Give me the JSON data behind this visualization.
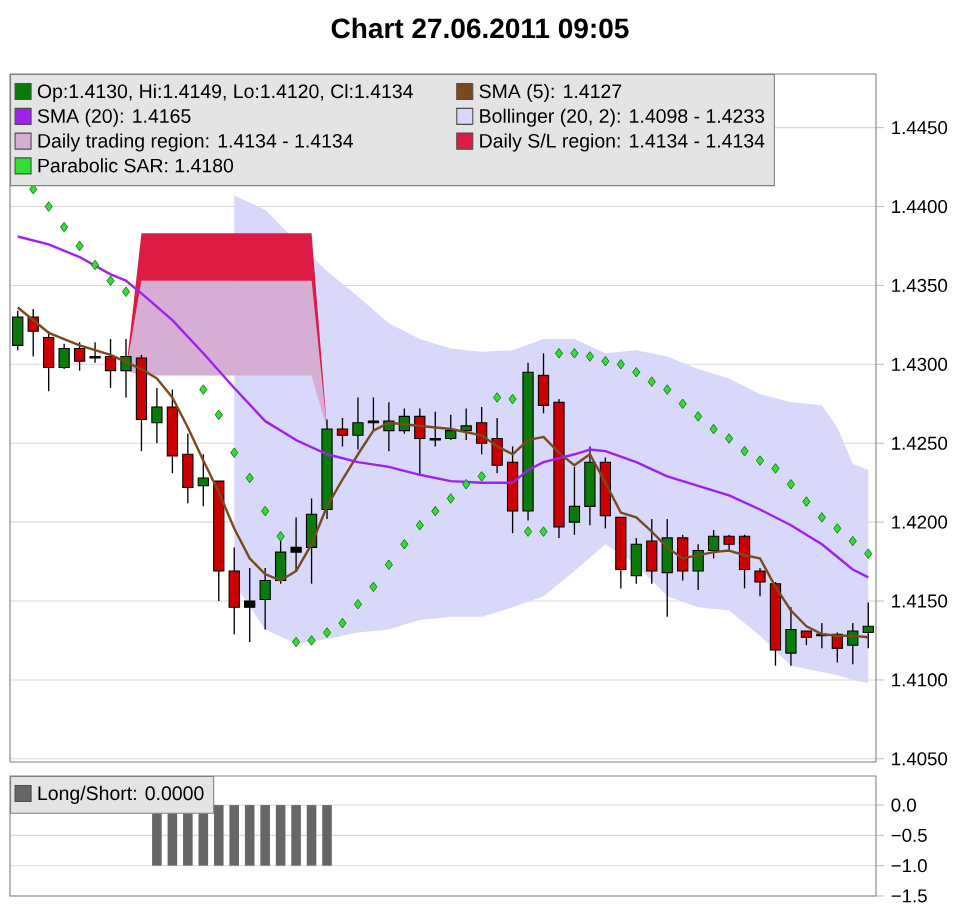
{
  "chart_data": [
    {
      "type": "candlestick",
      "title": "Chart 27.06.2011 09:05",
      "categories": [
        null,
        null,
        null,
        null,
        null,
        null,
        null,
        null,
        null,
        null,
        null,
        null,
        null,
        null,
        null,
        null,
        null,
        null,
        null,
        null,
        null,
        null,
        null,
        null,
        null,
        null,
        null,
        null,
        null,
        null,
        null,
        null,
        null,
        null,
        null,
        null,
        null,
        null,
        null,
        null,
        null,
        null,
        null,
        null,
        null,
        null,
        null,
        null,
        null,
        null,
        null,
        null,
        null,
        null,
        null,
        null
      ],
      "series": [
        {
          "type": "candlestick",
          "name": "Op:1.4130, Hi:1.4149, Lo:1.4120, Cl:1.4134",
          "color": "#0a7a0a",
          "ohlc": [
            [
              1.4312,
              1.4334,
              1.4309,
              1.433
            ],
            [
              1.433,
              1.4335,
              1.4305,
              1.4321
            ],
            [
              1.4317,
              1.4321,
              1.4283,
              1.4298
            ],
            [
              1.4298,
              1.4313,
              1.4297,
              1.431
            ],
            [
              1.431,
              1.4314,
              1.4296,
              1.4302
            ],
            [
              1.4305,
              1.4314,
              1.4301,
              1.4304
            ],
            [
              1.4305,
              1.4316,
              1.4285,
              1.4296
            ],
            [
              1.4296,
              1.4316,
              1.4279,
              1.4305
            ],
            [
              1.4304,
              1.4306,
              1.4245,
              1.4265
            ],
            [
              1.4263,
              1.4285,
              1.425,
              1.4273
            ],
            [
              1.4273,
              1.4284,
              1.4231,
              1.4242
            ],
            [
              1.4243,
              1.4256,
              1.4212,
              1.4222
            ],
            [
              1.4223,
              1.4243,
              1.421,
              1.4228
            ],
            [
              1.4226,
              1.4226,
              1.415,
              1.4169
            ],
            [
              1.4169,
              1.4184,
              1.4129,
              1.4146
            ],
            [
              1.4146,
              1.4171,
              1.4124,
              1.415
            ],
            [
              1.4151,
              1.4171,
              1.4132,
              1.4163
            ],
            [
              1.4163,
              1.4188,
              1.4161,
              1.4181
            ],
            [
              1.4181,
              1.4203,
              1.4169,
              1.4184
            ],
            [
              1.4184,
              1.4215,
              1.4161,
              1.4205
            ],
            [
              1.4208,
              1.4265,
              1.4202,
              1.4259
            ],
            [
              1.4259,
              1.4266,
              1.4248,
              1.4255
            ],
            [
              1.4255,
              1.4279,
              1.4246,
              1.4263
            ],
            [
              1.4263,
              1.4279,
              1.4258,
              1.4264
            ],
            [
              1.4258,
              1.4276,
              1.4245,
              1.4264
            ],
            [
              1.4258,
              1.4272,
              1.4256,
              1.4267
            ],
            [
              1.4267,
              1.4272,
              1.423,
              1.4253
            ],
            [
              1.4253,
              1.427,
              1.4248,
              1.4252
            ],
            [
              1.4253,
              1.4268,
              1.4252,
              1.4258
            ],
            [
              1.4258,
              1.4272,
              1.4252,
              1.4261
            ],
            [
              1.4263,
              1.4273,
              1.4243,
              1.425
            ],
            [
              1.4253,
              1.4266,
              1.4231,
              1.4236
            ],
            [
              1.4238,
              1.4248,
              1.4193,
              1.4207
            ],
            [
              1.4207,
              1.4301,
              1.4201,
              1.4295
            ],
            [
              1.4293,
              1.4307,
              1.4269,
              1.4274
            ],
            [
              1.4276,
              1.4278,
              1.419,
              1.4197
            ],
            [
              1.42,
              1.4235,
              1.4192,
              1.421
            ],
            [
              1.421,
              1.4248,
              1.4198,
              1.4238
            ],
            [
              1.4238,
              1.4241,
              1.4196,
              1.4204
            ],
            [
              1.4203,
              1.4203,
              1.4158,
              1.417
            ],
            [
              1.4166,
              1.419,
              1.4161,
              1.4186
            ],
            [
              1.4188,
              1.4202,
              1.4161,
              1.4169
            ],
            [
              1.4168,
              1.4202,
              1.414,
              1.419
            ],
            [
              1.419,
              1.4192,
              1.4163,
              1.4169
            ],
            [
              1.4169,
              1.4186,
              1.4157,
              1.4182
            ],
            [
              1.4182,
              1.4195,
              1.4177,
              1.4191
            ],
            [
              1.4191,
              1.4192,
              1.4182,
              1.4186
            ],
            [
              1.4191,
              1.4192,
              1.4158,
              1.417
            ],
            [
              1.4169,
              1.4171,
              1.4153,
              1.4162
            ],
            [
              1.4161,
              1.4162,
              1.4109,
              1.4119
            ],
            [
              1.4117,
              1.4146,
              1.4109,
              1.4132
            ],
            [
              1.4131,
              1.4131,
              1.4122,
              1.4127
            ],
            [
              1.4129,
              1.4136,
              1.412,
              1.4128
            ],
            [
              1.4129,
              1.413,
              1.4111,
              1.412
            ],
            [
              1.4122,
              1.4136,
              1.411,
              1.4131
            ],
            [
              1.413,
              1.4149,
              1.412,
              1.4134
            ]
          ],
          "colors": [
            "#0a7a0a",
            "#cc0000",
            "#cc0000",
            "#0a7a0a",
            "#cc0000",
            "#000000",
            "#cc0000",
            "#0a7a0a",
            "#cc0000",
            "#0a7a0a",
            "#cc0000",
            "#cc0000",
            "#0a7a0a",
            "#cc0000",
            "#cc0000",
            "#000000",
            "#0a7a0a",
            "#0a7a0a",
            "#000000",
            "#0a7a0a",
            "#0a7a0a",
            "#cc0000",
            "#0a7a0a",
            "#000000",
            "#0a7a0a",
            "#0a7a0a",
            "#cc0000",
            "#000000",
            "#0a7a0a",
            "#0a7a0a",
            "#cc0000",
            "#cc0000",
            "#cc0000",
            "#0a7a0a",
            "#cc0000",
            "#cc0000",
            "#0a7a0a",
            "#0a7a0a",
            "#cc0000",
            "#cc0000",
            "#0a7a0a",
            "#cc0000",
            "#0a7a0a",
            "#cc0000",
            "#0a7a0a",
            "#0a7a0a",
            "#cc0000",
            "#cc0000",
            "#cc0000",
            "#cc0000",
            "#0a7a0a",
            "#cc0000",
            "#000000",
            "#cc0000",
            "#0a7a0a",
            "#0a7a0a"
          ]
        },
        {
          "type": "line",
          "name": "SMA (5): 1.4127",
          "color": "#7a4a1e",
          "values": [
            1.4336,
            null,
            1.432,
            null,
            1.4312,
            null,
            1.4306,
            null,
            1.4297,
            1.4291,
            1.4279,
            1.426,
            1.4239,
            1.4219,
            1.4196,
            1.4177,
            1.4167,
            1.4163,
            1.4169,
            1.4186,
            1.421,
            1.4227,
            1.4243,
            1.4258,
            1.4263,
            null,
            1.4261,
            null,
            1.4259,
            null,
            1.4255,
            1.4248,
            1.4243,
            1.4252,
            1.4254,
            1.4244,
            1.4236,
            1.4243,
            1.4225,
            1.4206,
            1.4203,
            1.4194,
            1.4184,
            1.4177,
            1.4179,
            1.4181,
            1.4182,
            1.4179,
            1.4177,
            1.4159,
            1.4144,
            1.4134,
            1.4129,
            1.4128,
            1.4128,
            1.4127
          ]
        },
        {
          "type": "line",
          "name": "SMA (20): 1.4165",
          "color": "#a020f0",
          "values": [
            1.4381,
            null,
            1.4376,
            null,
            1.4368,
            null,
            1.4357,
            1.4353,
            1.4345,
            null,
            1.4328,
            null,
            1.4307,
            null,
            1.4285,
            null,
            1.4264,
            null,
            1.4252,
            null,
            1.4243,
            null,
            1.4238,
            null,
            1.4235,
            null,
            1.423,
            null,
            1.4226,
            null,
            1.4225,
            null,
            1.4225,
            1.4233,
            1.4238,
            null,
            1.4243,
            1.4246,
            1.4245,
            null,
            1.4238,
            null,
            1.4229,
            null,
            1.4223,
            null,
            1.4217,
            null,
            1.4208,
            null,
            1.4198,
            null,
            1.4186,
            null,
            1.417,
            1.4165
          ]
        },
        {
          "type": "line",
          "name": "Bollinger (20, 2): 1.4098 - 1.4233",
          "color": "#d8d8fb",
          "values": [
            null,
            null,
            null,
            null,
            null,
            null,
            null,
            null,
            null,
            null,
            null,
            null,
            null,
            null,
            null,
            null,
            null,
            null,
            null,
            null,
            null,
            null,
            null,
            null,
            null,
            null,
            null,
            null,
            null,
            null,
            null,
            null,
            null,
            null,
            null,
            null,
            null,
            null,
            null,
            null,
            null,
            null,
            null,
            null,
            null,
            null,
            null,
            null,
            null,
            null,
            null,
            null,
            null,
            null,
            null,
            null
          ],
          "lower": [
            null,
            null,
            null,
            null,
            null,
            null,
            null,
            null,
            null,
            null,
            null,
            null,
            null,
            null,
            1.4161,
            null,
            1.4132,
            null,
            1.4123,
            null,
            1.4126,
            null,
            1.413,
            null,
            1.4132,
            null,
            1.4138,
            null,
            1.414,
            null,
            1.414,
            null,
            1.4146,
            null,
            1.4153,
            null,
            1.4169,
            null,
            1.4186,
            null,
            1.4173,
            null,
            1.4153,
            null,
            1.4146,
            null,
            1.4144,
            null,
            1.4128,
            null,
            1.4109,
            null,
            1.4105,
            1.4103,
            1.41,
            1.4098
          ],
          "upper": [
            null,
            null,
            null,
            null,
            null,
            null,
            null,
            null,
            null,
            null,
            null,
            null,
            null,
            null,
            1.4407,
            null,
            1.4398,
            null,
            1.4378,
            null,
            1.4359,
            null,
            1.4343,
            null,
            1.4326,
            null,
            1.4316,
            null,
            1.431,
            null,
            1.4308,
            null,
            1.4309,
            null,
            1.4316,
            null,
            1.4316,
            null,
            1.4307,
            null,
            1.4309,
            null,
            1.4305,
            null,
            1.4297,
            null,
            1.4291,
            null,
            1.4281,
            null,
            1.4276,
            null,
            1.4274,
            1.426,
            1.4237,
            1.4233
          ]
        },
        {
          "type": "line",
          "name": "Daily trading region: 1.4134 - 1.4134",
          "color": "#d6aed3",
          "values": [
            null,
            null,
            null,
            null,
            null,
            null,
            null,
            null,
            null,
            null,
            null,
            null,
            null,
            null,
            null,
            null,
            null,
            null,
            null,
            null,
            null,
            null,
            null,
            null,
            null,
            null,
            null,
            null,
            null,
            null,
            null,
            null,
            null,
            null,
            null,
            null,
            null,
            null,
            null,
            null,
            null,
            null,
            null,
            null,
            null,
            null,
            null,
            null,
            null,
            null,
            null,
            null,
            null,
            null,
            null,
            null
          ],
          "lower": [
            null,
            null,
            null,
            null,
            null,
            null,
            null,
            1.4296,
            1.4293,
            null,
            null,
            null,
            null,
            null,
            null,
            null,
            null,
            null,
            null,
            1.4293,
            1.4259,
            null,
            null,
            null,
            null,
            null,
            null,
            null,
            null,
            null,
            null,
            null,
            null,
            null,
            null,
            null,
            null,
            null,
            null,
            null,
            null,
            null,
            null,
            null,
            null,
            null,
            null,
            null,
            null,
            null,
            null,
            null,
            null,
            null,
            null,
            null
          ],
          "upper": [
            null,
            null,
            null,
            null,
            null,
            null,
            null,
            1.4296,
            1.4353,
            null,
            null,
            null,
            null,
            null,
            null,
            null,
            null,
            null,
            null,
            1.4353,
            1.4259,
            null,
            null,
            null,
            null,
            null,
            null,
            null,
            null,
            null,
            null,
            null,
            null,
            null,
            null,
            null,
            null,
            null,
            null,
            null,
            null,
            null,
            null,
            null,
            null,
            null,
            null,
            null,
            null,
            null,
            null,
            null,
            null,
            null,
            null,
            null
          ]
        },
        {
          "type": "line",
          "name": "Daily S/L region: 1.4134 - 1.4134",
          "color": "#dc1c44",
          "values": [
            null,
            null,
            null,
            null,
            null,
            null,
            null,
            null,
            null,
            null,
            null,
            null,
            null,
            null,
            null,
            null,
            null,
            null,
            null,
            null,
            null,
            null,
            null,
            null,
            null,
            null,
            null,
            null,
            null,
            null,
            null,
            null,
            null,
            null,
            null,
            null,
            null,
            null,
            null,
            null,
            null,
            null,
            null,
            null,
            null,
            null,
            null,
            null,
            null,
            null,
            null,
            null,
            null,
            null,
            null,
            null
          ],
          "lower": [
            null,
            null,
            null,
            null,
            null,
            null,
            null,
            1.4296,
            1.4353,
            null,
            null,
            null,
            null,
            null,
            null,
            null,
            null,
            null,
            null,
            1.4353,
            1.4259,
            null,
            null,
            null,
            null,
            null,
            null,
            null,
            null,
            null,
            null,
            null,
            null,
            null,
            null,
            null,
            null,
            null,
            null,
            null,
            null,
            null,
            null,
            null,
            null,
            null,
            null,
            null,
            null,
            null,
            null,
            null,
            null,
            null,
            null,
            null
          ],
          "upper": [
            null,
            null,
            null,
            null,
            null,
            null,
            null,
            1.4296,
            1.4383,
            null,
            null,
            null,
            null,
            null,
            null,
            null,
            null,
            null,
            null,
            1.4383,
            1.4259,
            null,
            null,
            null,
            null,
            null,
            null,
            null,
            null,
            null,
            null,
            null,
            null,
            null,
            null,
            null,
            null,
            null,
            null,
            null,
            null,
            null,
            null,
            null,
            null,
            null,
            null,
            null,
            null,
            null,
            null,
            null,
            null,
            null,
            null,
            null
          ]
        },
        {
          "type": "scatter",
          "name": "Parabolic SAR: 1.4180",
          "color": "#33dd33",
          "marker": "diamond",
          "values": [
            null,
            1.4411,
            1.44,
            1.4387,
            1.4375,
            1.4363,
            1.4353,
            1.4346,
            null,
            null,
            null,
            null,
            1.4284,
            1.4268,
            1.4244,
            1.4228,
            1.4207,
            1.4191,
            1.4124,
            1.4125,
            1.413,
            1.4136,
            1.4148,
            1.4159,
            1.4173,
            1.4186,
            1.4198,
            1.4207,
            1.4215,
            1.4224,
            1.4229,
            1.4279,
            1.4278,
            1.4194,
            1.4194,
            1.4307,
            1.4307,
            1.4305,
            1.4302,
            1.43,
            1.4295,
            1.4289,
            1.4284,
            1.4275,
            1.4267,
            1.4259,
            1.4253,
            1.4245,
            1.4239,
            1.4234,
            1.4224,
            1.4213,
            1.4203,
            1.4196,
            1.4188,
            1.418
          ]
        }
      ],
      "ylim": [
        1.4048,
        1.4484
      ],
      "yticks": [
        {
          "value": 1.405,
          "label": "1.4050"
        },
        {
          "value": 1.41,
          "label": "1.4100"
        },
        {
          "value": 1.415,
          "label": "1.4150"
        },
        {
          "value": 1.42,
          "label": "1.4200"
        },
        {
          "value": 1.425,
          "label": "1.4250"
        },
        {
          "value": 1.43,
          "label": "1.4300"
        },
        {
          "value": 1.435,
          "label": "1.4350"
        },
        {
          "value": 1.44,
          "label": "1.4400"
        },
        {
          "value": 1.445,
          "label": "1.4450"
        }
      ],
      "grid": "y",
      "legend": "top",
      "tick_labels": "y"
    },
    {
      "type": "bar",
      "categories": [
        null,
        null,
        null,
        null,
        null,
        null,
        null,
        null,
        null,
        null,
        null,
        null,
        null,
        null,
        null,
        null,
        null,
        null,
        null,
        null,
        null,
        null,
        null,
        null,
        null,
        null,
        null,
        null,
        null,
        null,
        null,
        null,
        null,
        null,
        null,
        null,
        null,
        null,
        null,
        null,
        null,
        null,
        null,
        null,
        null,
        null,
        null,
        null,
        null,
        null,
        null,
        null,
        null,
        null,
        null,
        null
      ],
      "series": [
        {
          "name": "Long/Short: 0.0000",
          "color": "#666666",
          "values": [
            0,
            0,
            0,
            0,
            0,
            0,
            0,
            0,
            0,
            -1,
            -1,
            -1,
            -1,
            -1,
            -1,
            -1,
            -1,
            -1,
            -1,
            -1,
            -1,
            0,
            0,
            0,
            0,
            0,
            0,
            0,
            0,
            0,
            0,
            0,
            0,
            0,
            0,
            0,
            0,
            0,
            0,
            0,
            0,
            0,
            0,
            0,
            0,
            0,
            0,
            0,
            0,
            0,
            0,
            0,
            0,
            0,
            0,
            0
          ]
        }
      ],
      "ylim": [
        -1.5,
        0.48
      ],
      "yticks": [
        {
          "value": 0,
          "label": "0.0"
        },
        {
          "value": -0.5,
          "label": "−0.5"
        },
        {
          "value": -1,
          "label": "−1.0"
        },
        {
          "value": -1.5,
          "label": "−1.5"
        }
      ],
      "grid": "y",
      "legend": "top",
      "tick_labels": "y"
    }
  ]
}
